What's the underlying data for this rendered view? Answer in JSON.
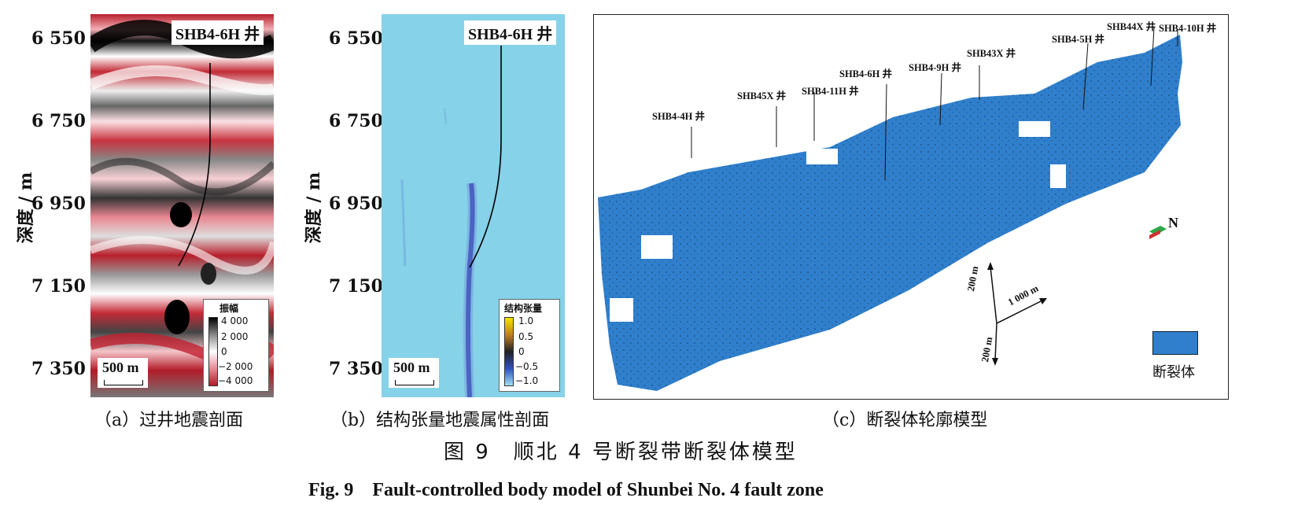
{
  "panel_a": {
    "yticks": [
      "6 550",
      "6 750",
      "6 950",
      "7 150",
      "7 350"
    ],
    "ylabel": "深度 / m",
    "well": "SHB4-6H 井",
    "colorbar_title": "振幅",
    "colorbar_labels": [
      "4 000",
      "2 000",
      "0",
      "−2 000",
      "−4 000"
    ],
    "scale": "500 m",
    "caption": "（a）过井地震剖面"
  },
  "panel_b": {
    "yticks": [
      "6 550",
      "6 750",
      "6 950",
      "7 150",
      "7 350"
    ],
    "ylabel": "深度 / m",
    "well": "SHB4-6H 井",
    "colorbar_title": "结构张量",
    "colorbar_labels": [
      "1.0",
      "0.5",
      "0",
      "−0.5",
      "−1.0"
    ],
    "scale": "500 m",
    "caption": "（b）结构张量地震属性剖面"
  },
  "panel_c": {
    "wells": [
      "SHB4-4H 井",
      "SHB45X 井",
      "SHB4-11H 井",
      "SHB4-6H 井",
      "SHB4-9H 井",
      "SHB43X 井",
      "SHB4-5H 井",
      "SHB44X 井",
      "SHB4-10H 井"
    ],
    "north": "N",
    "axis_labels": [
      "200 m",
      "1 000 m",
      "200 m"
    ],
    "legend": "断裂体",
    "body_color": "#2f7fcc",
    "caption": "（c）断裂体轮廓模型"
  },
  "figure_caption_cn": "图 9　顺北 4 号断裂带断裂体模型",
  "figure_caption_en": "Fig. 9　Fault-controlled body model of Shunbei No. 4 fault zone"
}
